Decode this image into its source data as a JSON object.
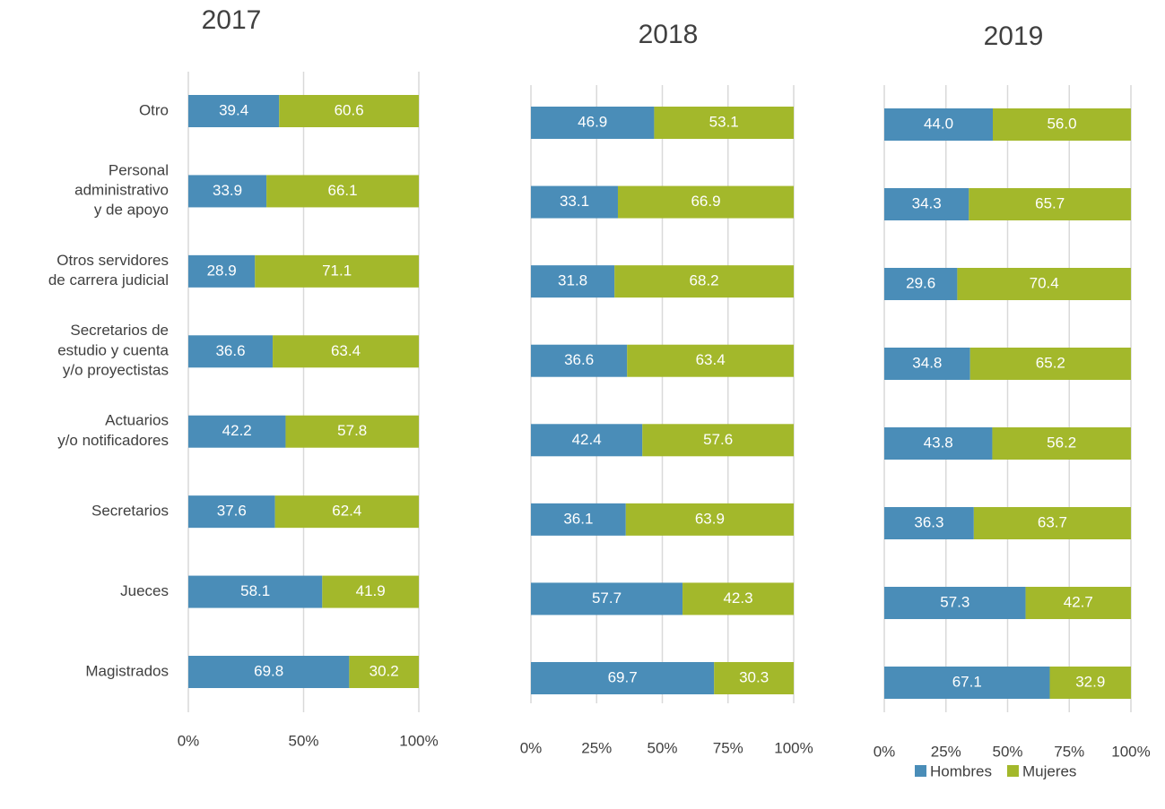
{
  "chart_data": [
    {
      "type": "bar",
      "stacked": true,
      "orientation": "horizontal",
      "title": "2017",
      "categories": [
        "Otro",
        "Personal\nadministrativo\ny de apoyo",
        "Otros servidores\nde carrera judicial",
        "Secretarios de\nestudio y cuenta\ny/o proyectistas",
        "Actuarios\ny/o notificadores",
        "Secretarios",
        "Jueces",
        "Magistrados"
      ],
      "series": [
        {
          "color": "#4a8db8",
          "values": [
            39.4,
            33.9,
            28.9,
            36.6,
            42.2,
            37.6,
            58.1,
            69.8
          ]
        },
        {
          "color": "#a3b82b",
          "values": [
            60.6,
            66.1,
            71.1,
            63.4,
            57.8,
            62.4,
            41.9,
            30.2
          ]
        }
      ],
      "xlim": [
        0,
        100
      ],
      "xticks": [
        {
          "value": 0,
          "label": "0%"
        },
        {
          "value": 50,
          "label": "50%"
        },
        {
          "value": 100,
          "label": "100%"
        }
      ],
      "grid": true
    },
    {
      "type": "bar",
      "stacked": true,
      "orientation": "horizontal",
      "title": "2018",
      "series": [
        {
          "color": "#4a8db8",
          "values": [
            46.9,
            33.1,
            31.8,
            36.6,
            42.4,
            36.1,
            57.7,
            69.7
          ]
        },
        {
          "color": "#a3b82b",
          "values": [
            53.1,
            66.9,
            68.2,
            63.4,
            57.6,
            63.9,
            42.3,
            30.3
          ]
        }
      ],
      "xlim": [
        0,
        100
      ],
      "xticks": [
        {
          "value": 0,
          "label": "0%"
        },
        {
          "value": 25,
          "label": "25%"
        },
        {
          "value": 50,
          "label": "50%"
        },
        {
          "value": 75,
          "label": "75%"
        },
        {
          "value": 100,
          "label": "100%"
        }
      ],
      "grid": true
    },
    {
      "type": "bar",
      "stacked": true,
      "orientation": "horizontal",
      "title": "2019",
      "series": [
        {
          "name": "Hombres",
          "color": "#4a8db8",
          "values": [
            44.0,
            34.3,
            29.6,
            34.8,
            43.8,
            36.3,
            57.3,
            67.1
          ],
          "value_labels": [
            "44.0",
            "34.3",
            "29.6",
            "34.8",
            "43.8",
            "36.3",
            "57.3",
            "67.1"
          ]
        },
        {
          "name": "Mujeres",
          "color": "#a3b82b",
          "values": [
            56.0,
            65.7,
            70.4,
            65.2,
            56.2,
            63.7,
            42.7,
            32.9
          ],
          "value_labels": [
            "56.0",
            "65.7",
            "70.4",
            "65.2",
            "56.2",
            "63.7",
            "42.7",
            "32.9"
          ]
        }
      ],
      "xlim": [
        0,
        100
      ],
      "xticks": [
        {
          "value": 0,
          "label": "0%"
        },
        {
          "value": 25,
          "label": "25%"
        },
        {
          "value": 50,
          "label": "50%"
        },
        {
          "value": 75,
          "label": "75%"
        },
        {
          "value": 100,
          "label": "100%"
        }
      ],
      "grid": true,
      "legend": "bottom-right"
    }
  ]
}
